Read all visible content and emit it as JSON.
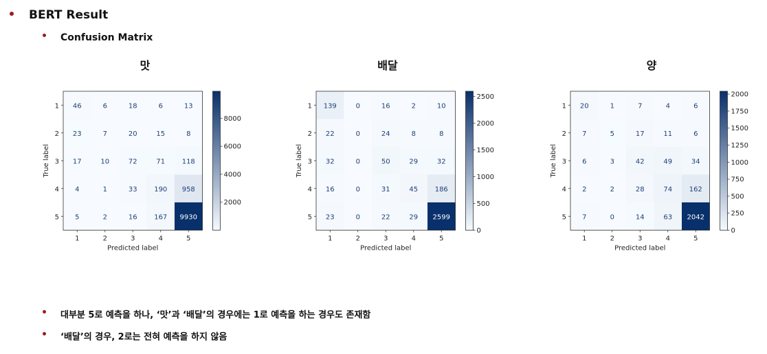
{
  "heading": "BERT Result",
  "subheading": "Confusion Matrix",
  "notes": [
    "대부분 5로 예측을 하나, ‘맛’과 ‘배달’의 경우에는 1로 예측을 하는 경우도 존재함",
    "‘배달’의 경우, 2로는 전혀 예측을 하지 않음"
  ],
  "chart_data": [
    {
      "type": "heatmap",
      "title": "맛",
      "xlabel": "Predicted label",
      "ylabel": "True label",
      "x_categories": [
        "1",
        "2",
        "3",
        "4",
        "5"
      ],
      "y_categories": [
        "1",
        "2",
        "3",
        "4",
        "5"
      ],
      "matrix": [
        [
          46,
          6,
          18,
          6,
          13
        ],
        [
          23,
          7,
          20,
          15,
          8
        ],
        [
          17,
          10,
          72,
          71,
          118
        ],
        [
          4,
          1,
          33,
          190,
          958
        ],
        [
          5,
          2,
          16,
          167,
          9930
        ]
      ],
      "colorbar_ticks": [
        2000,
        4000,
        6000,
        8000
      ],
      "colorbar_range": [
        0,
        9930
      ],
      "colormap": "Blues"
    },
    {
      "type": "heatmap",
      "title": "배달",
      "xlabel": "Predicted label",
      "ylabel": "True label",
      "x_categories": [
        "1",
        "2",
        "3",
        "4",
        "5"
      ],
      "y_categories": [
        "1",
        "2",
        "3",
        "4",
        "5"
      ],
      "matrix": [
        [
          139,
          0,
          16,
          2,
          10
        ],
        [
          22,
          0,
          24,
          8,
          8
        ],
        [
          32,
          0,
          50,
          29,
          32
        ],
        [
          16,
          0,
          31,
          45,
          186
        ],
        [
          23,
          0,
          22,
          29,
          2599
        ]
      ],
      "colorbar_ticks": [
        0,
        500,
        1000,
        1500,
        2000,
        2500
      ],
      "colorbar_range": [
        0,
        2599
      ],
      "colormap": "Blues"
    },
    {
      "type": "heatmap",
      "title": "양",
      "xlabel": "Predicted label",
      "ylabel": "True label",
      "x_categories": [
        "1",
        "2",
        "3",
        "4",
        "5"
      ],
      "y_categories": [
        "1",
        "2",
        "3",
        "4",
        "5"
      ],
      "matrix": [
        [
          20,
          1,
          7,
          4,
          6
        ],
        [
          7,
          5,
          17,
          11,
          6
        ],
        [
          6,
          3,
          42,
          49,
          34
        ],
        [
          2,
          2,
          28,
          74,
          162
        ],
        [
          7,
          0,
          14,
          63,
          2042
        ]
      ],
      "colorbar_ticks": [
        0,
        250,
        500,
        750,
        1000,
        1250,
        1500,
        1750,
        2000
      ],
      "colorbar_range": [
        0,
        2042
      ],
      "colormap": "Blues"
    }
  ],
  "colors": {
    "bullet": "#9b1c1c",
    "low": "#f7fbff",
    "high": "#08306b"
  }
}
